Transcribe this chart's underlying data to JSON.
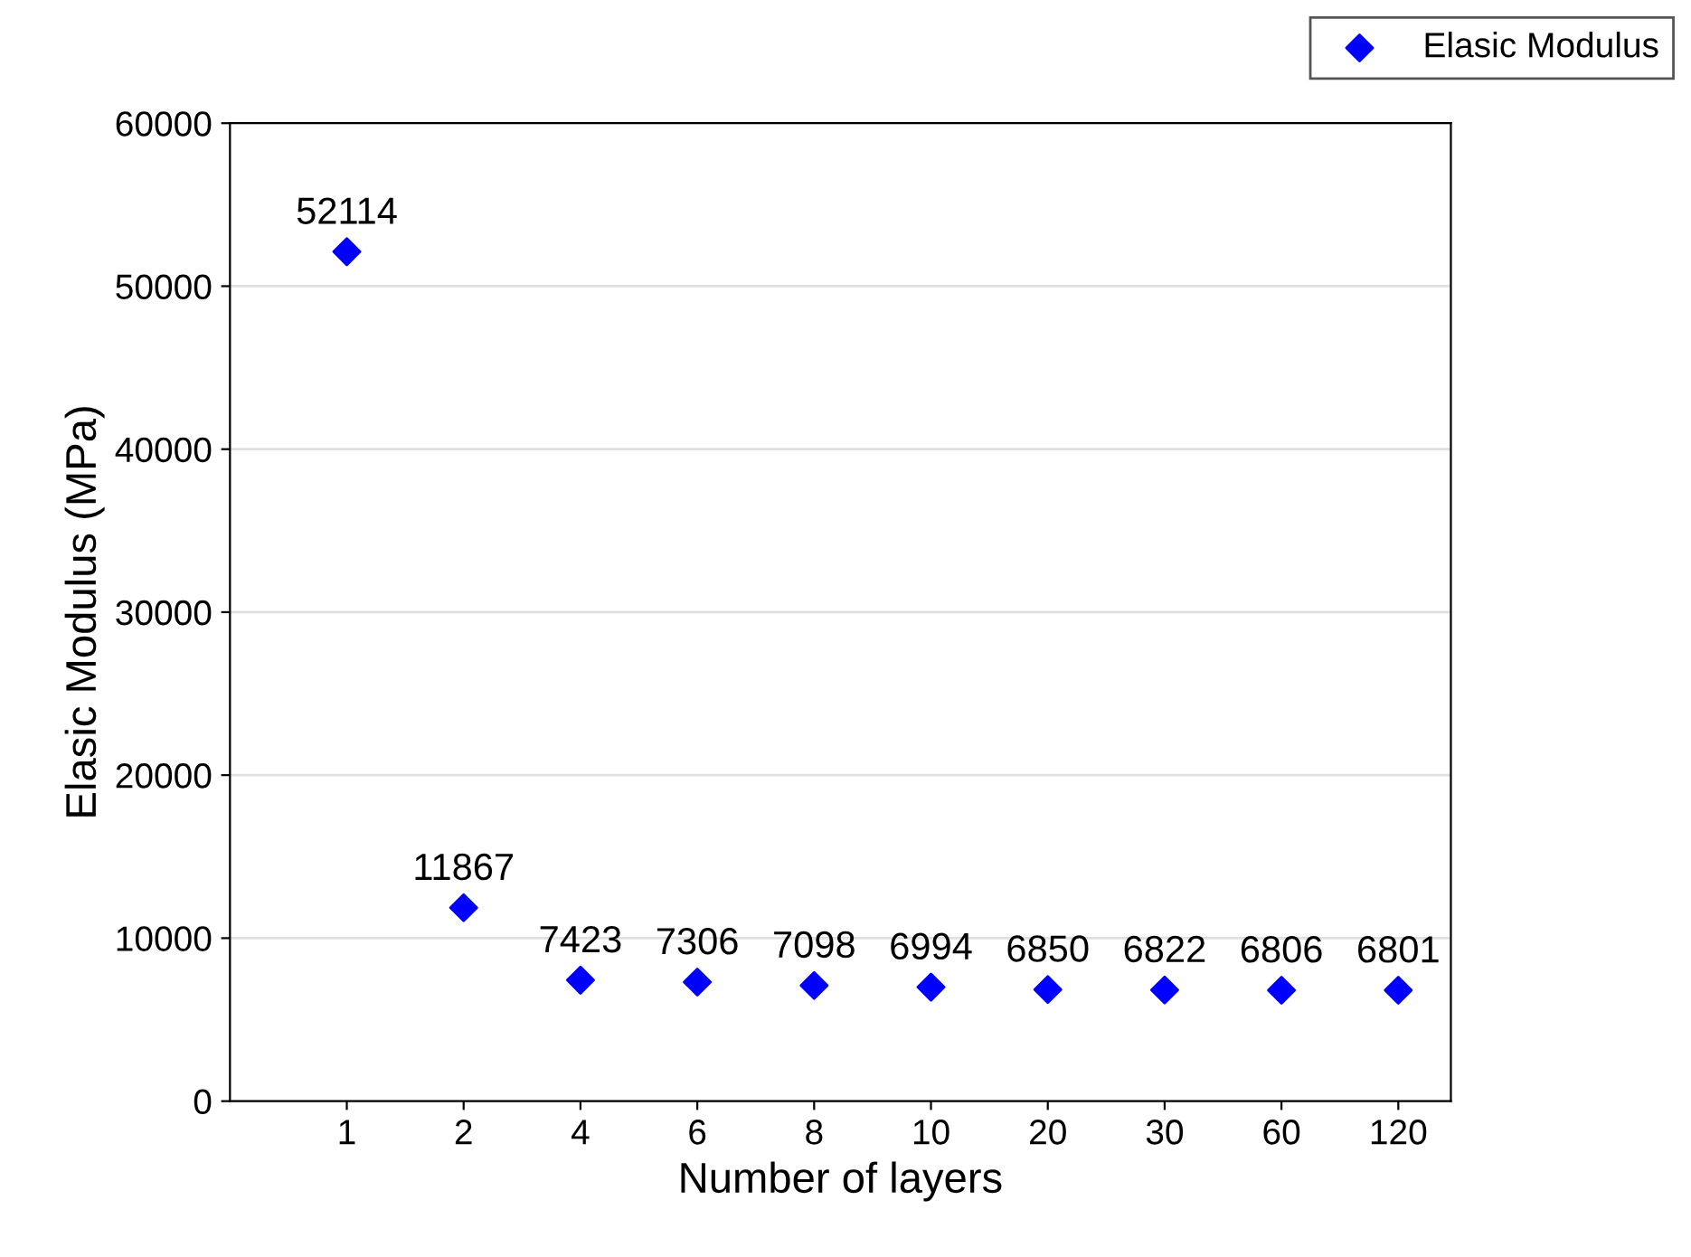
{
  "chart_data": {
    "type": "scatter",
    "xlabel": "Number of layers",
    "ylabel": "Elasic Modulus (MPa)",
    "categories": [
      "1",
      "2",
      "4",
      "6",
      "8",
      "10",
      "20",
      "30",
      "60",
      "120"
    ],
    "series": [
      {
        "name": "Elasic Modulus",
        "color": "#0000ff",
        "values": [
          52114,
          11867,
          7423,
          7306,
          7098,
          6994,
          6850,
          6822,
          6806,
          6801
        ]
      }
    ],
    "ylim": [
      0,
      60000
    ],
    "yticks": [
      0,
      10000,
      20000,
      30000,
      40000,
      50000,
      60000
    ],
    "grid": "y",
    "legend": "top right",
    "marker": "diamond",
    "data_labels": true
  }
}
